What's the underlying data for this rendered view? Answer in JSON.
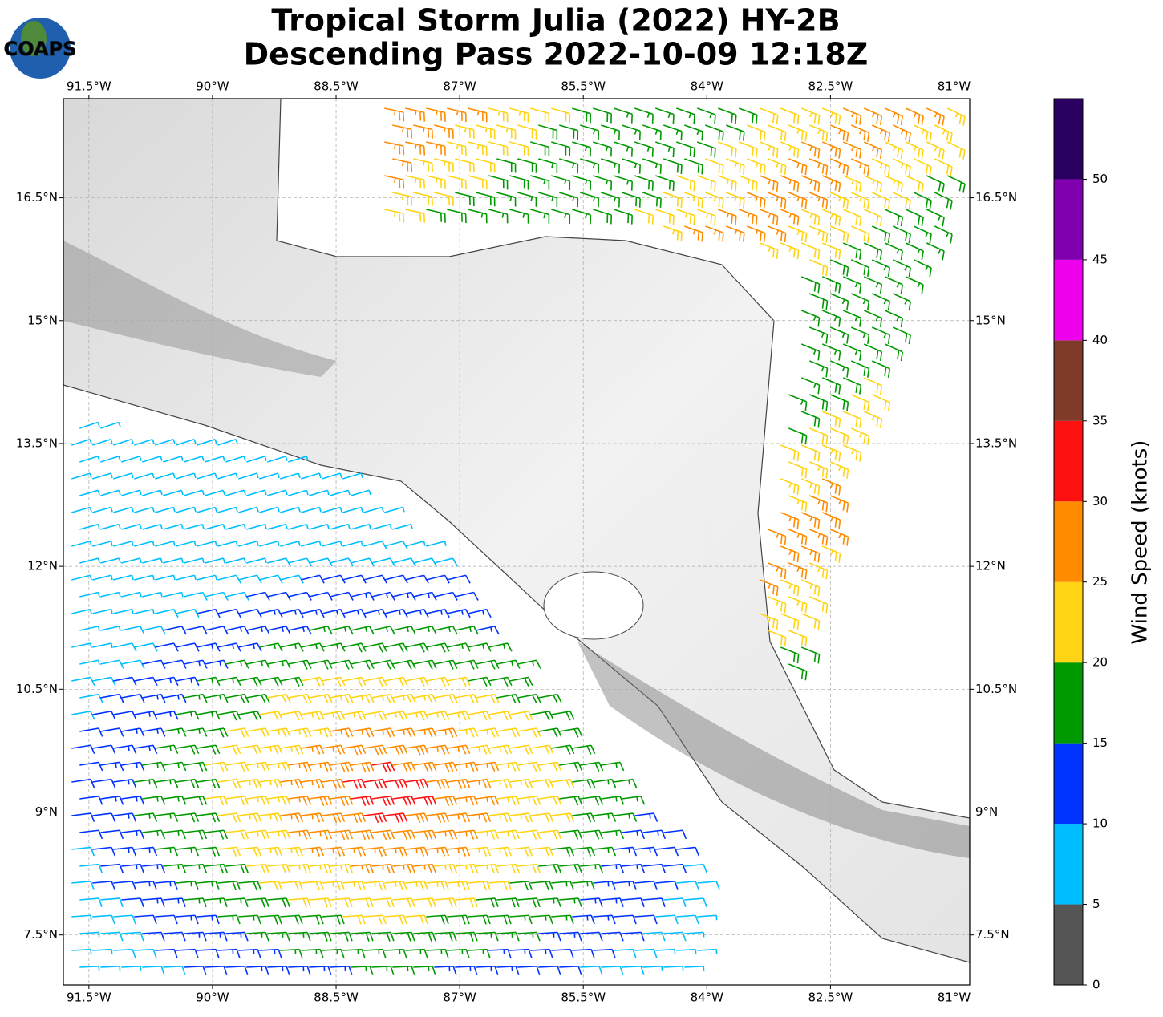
{
  "title": [
    "Tropical Storm Julia (2022) HY-2B",
    "Descending Pass 2022-10-09 12:18Z"
  ],
  "logo": "COAPS",
  "map": {
    "xlim": [
      -91.81,
      -80.81
    ],
    "ylim": [
      6.89,
      17.71
    ],
    "xticks": [
      {
        "value": -91.5,
        "label": "91.5°W"
      },
      {
        "value": -90,
        "label": "90°W"
      },
      {
        "value": -88.5,
        "label": "88.5°W"
      },
      {
        "value": -87,
        "label": "87°W"
      },
      {
        "value": -85.5,
        "label": "85.5°W"
      },
      {
        "value": -84,
        "label": "84°W"
      },
      {
        "value": -82.5,
        "label": "82.5°W"
      },
      {
        "value": -81,
        "label": "81°W"
      }
    ],
    "yticks": [
      {
        "value": 7.5,
        "label": "7.5°N"
      },
      {
        "value": 9,
        "label": "9°N"
      },
      {
        "value": 10.5,
        "label": "10.5°N"
      },
      {
        "value": 12,
        "label": "12°N"
      },
      {
        "value": 13.5,
        "label": "13.5°N"
      },
      {
        "value": 15,
        "label": "15°N"
      },
      {
        "value": 16.5,
        "label": "16.5°N"
      }
    ],
    "grid": true
  },
  "colorbar": {
    "label": "Wind Speed (knots)",
    "lim": [
      0,
      55
    ],
    "bounds": [
      0,
      5,
      10,
      15,
      20,
      25,
      30,
      35,
      40,
      45,
      50,
      55
    ],
    "colors": [
      "#555555",
      "#00bfff",
      "#0033ff",
      "#009900",
      "#ffd414",
      "#ff8c00",
      "#ff1111",
      "#7f3a28",
      "#ee00ee",
      "#8000b0",
      "#2a0060"
    ],
    "ticks": [
      0,
      5,
      10,
      15,
      20,
      25,
      30,
      35,
      40,
      45,
      50
    ]
  }
}
